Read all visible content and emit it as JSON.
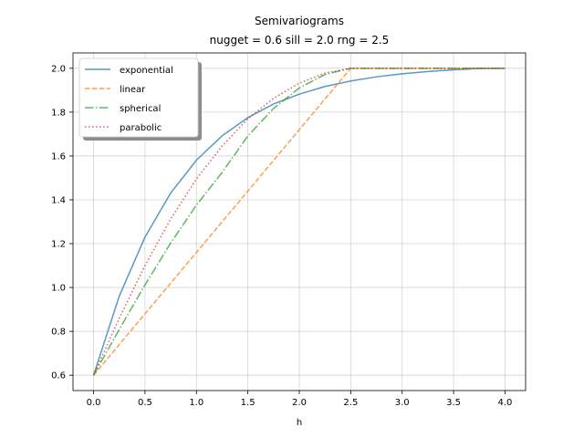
{
  "chart_data": {
    "type": "line",
    "title": "Semivariograms",
    "subtitle": "nugget = 0.6  sill = 2.0  rng = 2.5",
    "xlabel": "h",
    "ylabel": "",
    "xlim": [
      -0.2,
      4.2
    ],
    "ylim": [
      0.53,
      2.07
    ],
    "grid": true,
    "legend_position": "top-left",
    "xticks": [
      0.0,
      0.5,
      1.0,
      1.5,
      2.0,
      2.5,
      3.0,
      3.5,
      4.0
    ],
    "xtick_labels": [
      "0.0",
      "0.5",
      "1.0",
      "1.5",
      "2.0",
      "2.5",
      "3.0",
      "3.5",
      "4.0"
    ],
    "yticks": [
      0.6,
      0.8,
      1.0,
      1.2,
      1.4,
      1.6,
      1.8,
      2.0
    ],
    "ytick_labels": [
      "0.6",
      "0.8",
      "1.0",
      "1.2",
      "1.4",
      "1.6",
      "1.8",
      "2.0"
    ],
    "x": [
      0.0,
      0.25,
      0.5,
      0.75,
      1.0,
      1.25,
      1.5,
      1.75,
      2.0,
      2.25,
      2.5,
      2.75,
      3.0,
      3.25,
      3.5,
      3.75,
      4.0
    ],
    "series": [
      {
        "name": "exponential",
        "color": "#1f77b4",
        "dash": "solid",
        "values": [
          0.6,
          0.961,
          1.23,
          1.431,
          1.581,
          1.692,
          1.775,
          1.837,
          1.882,
          1.917,
          1.942,
          1.961,
          1.975,
          1.985,
          1.993,
          1.999,
          2.0
        ]
      },
      {
        "name": "linear",
        "color": "#ff7f0e",
        "dash": "dashed",
        "values": [
          0.6,
          0.74,
          0.88,
          1.02,
          1.16,
          1.3,
          1.44,
          1.58,
          1.72,
          1.86,
          2.0,
          2.0,
          2.0,
          2.0,
          2.0,
          2.0,
          2.0
        ]
      },
      {
        "name": "spherical",
        "color": "#2ca02c",
        "dash": "dashdot",
        "values": [
          0.6,
          0.809,
          1.012,
          1.203,
          1.376,
          1.525,
          1.691,
          1.817,
          1.91,
          1.972,
          2.0,
          2.0,
          2.0,
          2.0,
          2.0,
          2.0,
          2.0
        ]
      },
      {
        "name": "parabolic",
        "color": "#d62728",
        "dash": "dotted",
        "values": [
          0.6,
          0.86,
          1.1,
          1.313,
          1.495,
          1.645,
          1.77,
          1.863,
          1.932,
          1.978,
          2.0,
          2.0,
          2.0,
          2.0,
          2.0,
          2.0,
          2.0
        ]
      }
    ]
  }
}
